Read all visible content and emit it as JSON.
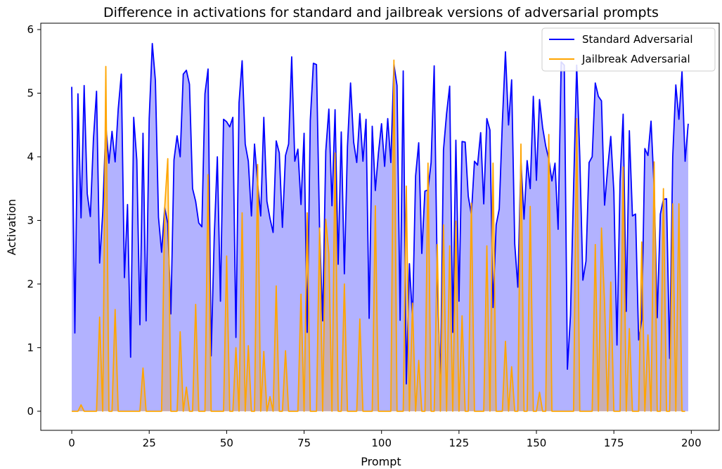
{
  "chart_data": {
    "type": "line",
    "title": "Difference in activations for standard and jailbreak versions of adversarial prompts",
    "xlabel": "Prompt",
    "ylabel": "Activation",
    "xlim": [
      -10,
      209
    ],
    "ylim": [
      -0.3,
      6.1
    ],
    "xticks": [
      0,
      25,
      50,
      75,
      100,
      125,
      150,
      175,
      200
    ],
    "yticks": [
      0,
      1,
      2,
      3,
      4,
      5,
      6
    ],
    "grid": false,
    "legend_position": "top-right",
    "fill_under": true,
    "x_start": 0,
    "series": [
      {
        "name": "Standard Adversarial",
        "color": "#0000ff",
        "fill_color": "#0000ff",
        "values": [
          5.1,
          1.23,
          4.99,
          3.04,
          5.12,
          3.42,
          3.06,
          4.28,
          5.03,
          2.33,
          3.12,
          4.5,
          3.9,
          4.4,
          3.92,
          4.75,
          5.3,
          2.1,
          3.25,
          0.85,
          4.62,
          3.95,
          1.36,
          4.37,
          1.42,
          4.6,
          5.78,
          5.2,
          3.05,
          2.5,
          3.2,
          2.95,
          1.53,
          3.95,
          4.33,
          4.0,
          5.3,
          5.36,
          5.14,
          3.5,
          3.3,
          2.96,
          2.9,
          4.99,
          5.38,
          0.87,
          2.75,
          4.0,
          1.73,
          4.59,
          4.55,
          4.47,
          4.62,
          1.16,
          4.85,
          5.51,
          4.2,
          3.93,
          3.07,
          4.2,
          3.58,
          3.07,
          4.62,
          3.3,
          3.03,
          2.81,
          4.25,
          4.06,
          2.89,
          4.02,
          4.2,
          5.57,
          3.93,
          4.12,
          3.25,
          4.37,
          1.24,
          4.57,
          5.47,
          5.45,
          2.86,
          1.42,
          4.09,
          4.75,
          3.23,
          4.74,
          2.31,
          4.39,
          2.16,
          4.16,
          5.16,
          4.23,
          3.91,
          4.68,
          3.93,
          4.59,
          1.46,
          4.48,
          3.47,
          4.06,
          4.52,
          3.85,
          4.6,
          3.91,
          5.45,
          5.12,
          1.43,
          5.35,
          0.43,
          2.32,
          1.45,
          3.7,
          4.22,
          2.48,
          3.46,
          3.48,
          3.91,
          5.43,
          2.1,
          0.42,
          4.11,
          4.68,
          5.11,
          1.24,
          4.26,
          1.73,
          4.24,
          4.23,
          3.38,
          3.09,
          3.93,
          3.87,
          4.38,
          3.26,
          4.6,
          4.42,
          1.63,
          2.93,
          3.18,
          4.54,
          5.65,
          4.5,
          5.21,
          2.63,
          1.95,
          3.94,
          3.02,
          3.94,
          3.5,
          4.95,
          3.63,
          4.9,
          4.46,
          4.17,
          3.96,
          3.62,
          3.9,
          2.86,
          5.49,
          5.44,
          0.66,
          1.51,
          3.51,
          5.44,
          4.01,
          2.06,
          2.36,
          3.91,
          4.0,
          5.16,
          4.95,
          4.88,
          3.24,
          3.82,
          4.32,
          3.45,
          1.04,
          3.62,
          4.67,
          1.57,
          4.41,
          3.07,
          3.1,
          1.12,
          1.44,
          4.13,
          4.02,
          4.56,
          3.51,
          1.47,
          3.1,
          3.33,
          3.34,
          0.83,
          4.0,
          5.13,
          4.59,
          5.34,
          3.93,
          4.52
        ]
      },
      {
        "name": "Jailbreak Adversarial",
        "color": "#ffa500",
        "fill_color": "#ffa500",
        "values": [
          0,
          0,
          0,
          0.1,
          0,
          0,
          0,
          0,
          0,
          1.48,
          0,
          5.42,
          0,
          0,
          1.6,
          0,
          0,
          0,
          0,
          0,
          0,
          0,
          0,
          0.68,
          0,
          0,
          0,
          0,
          0,
          0,
          3.2,
          3.97,
          0,
          0,
          0,
          1.25,
          0,
          0.38,
          0,
          0,
          1.68,
          0,
          0,
          0,
          3.72,
          0,
          0,
          0,
          0,
          0,
          2.44,
          0,
          0,
          1.0,
          0,
          3.12,
          0,
          1.03,
          0,
          0,
          3.88,
          0,
          0.94,
          0,
          0.23,
          0,
          1.97,
          0,
          0,
          0.95,
          0,
          0,
          0,
          0,
          1.84,
          0,
          3.12,
          0,
          0,
          0,
          2.88,
          0,
          3.02,
          2.48,
          0,
          4.06,
          0,
          0,
          2.0,
          0,
          0,
          0,
          0,
          1.45,
          0,
          0,
          0,
          0,
          3.23,
          0,
          0,
          0,
          0,
          0,
          5.52,
          0,
          0,
          0,
          3.54,
          0,
          1.7,
          0,
          0.8,
          0,
          0,
          3.9,
          0,
          0,
          2.62,
          0,
          2.93,
          0,
          2.6,
          0,
          2.99,
          0,
          1.5,
          0,
          0,
          3.27,
          0,
          0,
          0,
          0,
          2.6,
          0,
          3.9,
          0,
          0,
          0,
          1.1,
          0,
          0.7,
          0,
          0,
          4.2,
          0,
          0,
          3.22,
          0,
          0,
          0.3,
          0,
          0,
          4.35,
          0,
          0,
          0,
          0,
          0,
          0,
          0,
          0,
          4.6,
          0,
          0,
          0,
          0,
          0,
          2.62,
          0,
          2.88,
          1.7,
          0,
          2.03,
          0,
          0,
          0,
          3.84,
          0,
          1.3,
          0,
          0,
          0,
          2.66,
          0,
          1.2,
          0,
          3.92,
          0,
          0,
          3.5,
          0,
          0,
          3.26,
          0,
          3.26,
          0,
          0
        ]
      }
    ]
  }
}
